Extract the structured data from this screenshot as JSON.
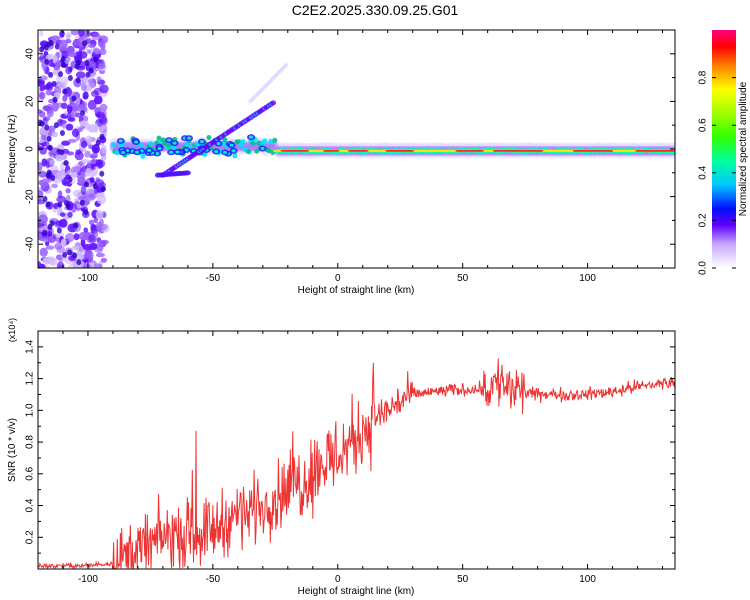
{
  "title": "C2E2.2025.330.09.25.G01",
  "chart_data": [
    {
      "type": "heatmap",
      "xlabel": "Height of straight line (km)",
      "ylabel": "Frequency (Hz)",
      "xlim": [
        -120,
        135
      ],
      "ylim": [
        -50,
        50
      ],
      "xticks": [
        -100,
        -50,
        0,
        50,
        100
      ],
      "yticks": [
        -40,
        -20,
        0,
        20,
        40
      ],
      "colorbar": {
        "label": "Normalized spectral amplitude",
        "range": [
          0.0,
          1.0
        ],
        "ticks": [
          "0.0",
          "0.2",
          "0.4",
          "0.6",
          "0.8"
        ]
      },
      "features": [
        {
          "name": "scattered noise",
          "x_range": [
            -120,
            -93
          ],
          "y_range": [
            -50,
            50
          ]
        },
        {
          "name": "main trace",
          "x_range": [
            -90,
            135
          ],
          "y_center": 0
        },
        {
          "name": "diverging branch",
          "x_range": [
            -70,
            -25
          ],
          "y_from": -11,
          "y_to": 20
        }
      ]
    },
    {
      "type": "line",
      "xlabel": "Height of straight line (km)",
      "ylabel": "SNR (10 * v/v)",
      "y_multiplier": "(x10⁴)",
      "xlim": [
        -120,
        135
      ],
      "ylim": [
        0,
        1.5
      ],
      "xticks": [
        -100,
        -50,
        0,
        50,
        100
      ],
      "yticks": [
        "0.2",
        "0.4",
        "0.6",
        "0.8",
        "1.0",
        "1.2",
        "1.4"
      ],
      "series": [
        {
          "name": "SNR",
          "color": "#ee3333",
          "x": [
            -120,
            -100,
            -90,
            -80,
            -70,
            -60,
            -50,
            -40,
            -30,
            -20,
            -15,
            -10,
            -5,
            0,
            5,
            10,
            15,
            20,
            25,
            30,
            40,
            50,
            60,
            65,
            70,
            80,
            90,
            100,
            110,
            120,
            130,
            135
          ],
          "y": [
            0.02,
            0.02,
            0.04,
            0.12,
            0.2,
            0.22,
            0.25,
            0.35,
            0.4,
            0.5,
            0.55,
            0.62,
            0.68,
            0.72,
            0.8,
            0.88,
            0.95,
            1.0,
            1.06,
            1.1,
            1.12,
            1.13,
            1.14,
            1.18,
            1.12,
            1.1,
            1.1,
            1.1,
            1.12,
            1.15,
            1.17,
            1.18
          ]
        }
      ]
    }
  ]
}
